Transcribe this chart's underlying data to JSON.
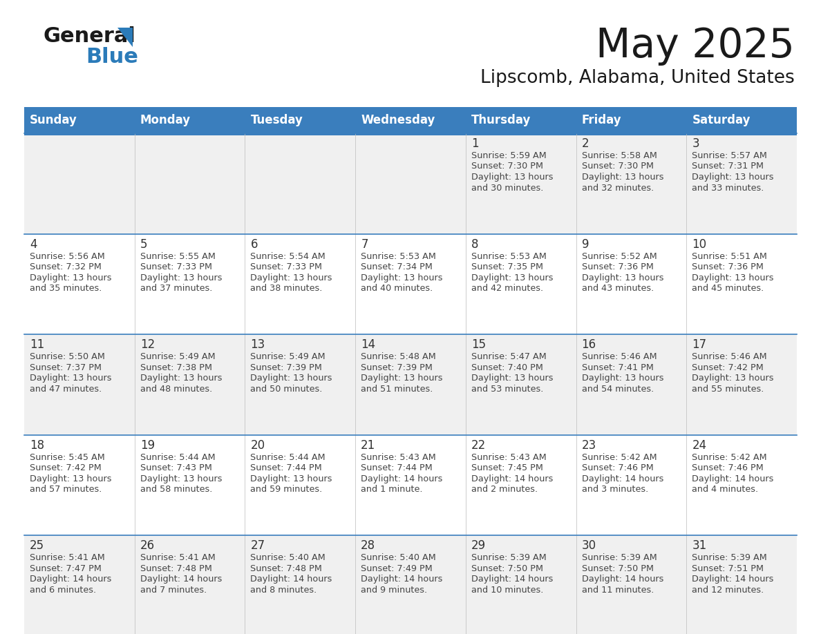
{
  "title": "May 2025",
  "subtitle": "Lipscomb, Alabama, United States",
  "days_of_week": [
    "Sunday",
    "Monday",
    "Tuesday",
    "Wednesday",
    "Thursday",
    "Friday",
    "Saturday"
  ],
  "header_bg_color": "#3A7EBD",
  "header_text_color": "#FFFFFF",
  "odd_row_bg": "#F0F0F0",
  "even_row_bg": "#FFFFFF",
  "row_separator_color": "#3A7EBD",
  "text_color": "#444444",
  "day_number_color": "#333333",
  "title_color": "#1a1a1a",
  "logo_black": "#1a1a1a",
  "logo_blue": "#2B7BB9",
  "calendar_data": [
    [
      {
        "day": "",
        "sunrise": "",
        "sunset": "",
        "daylight": ""
      },
      {
        "day": "",
        "sunrise": "",
        "sunset": "",
        "daylight": ""
      },
      {
        "day": "",
        "sunrise": "",
        "sunset": "",
        "daylight": ""
      },
      {
        "day": "",
        "sunrise": "",
        "sunset": "",
        "daylight": ""
      },
      {
        "day": "1",
        "sunrise": "5:59 AM",
        "sunset": "7:30 PM",
        "daylight": "13 hours and 30 minutes."
      },
      {
        "day": "2",
        "sunrise": "5:58 AM",
        "sunset": "7:30 PM",
        "daylight": "13 hours and 32 minutes."
      },
      {
        "day": "3",
        "sunrise": "5:57 AM",
        "sunset": "7:31 PM",
        "daylight": "13 hours and 33 minutes."
      }
    ],
    [
      {
        "day": "4",
        "sunrise": "5:56 AM",
        "sunset": "7:32 PM",
        "daylight": "13 hours and 35 minutes."
      },
      {
        "day": "5",
        "sunrise": "5:55 AM",
        "sunset": "7:33 PM",
        "daylight": "13 hours and 37 minutes."
      },
      {
        "day": "6",
        "sunrise": "5:54 AM",
        "sunset": "7:33 PM",
        "daylight": "13 hours and 38 minutes."
      },
      {
        "day": "7",
        "sunrise": "5:53 AM",
        "sunset": "7:34 PM",
        "daylight": "13 hours and 40 minutes."
      },
      {
        "day": "8",
        "sunrise": "5:53 AM",
        "sunset": "7:35 PM",
        "daylight": "13 hours and 42 minutes."
      },
      {
        "day": "9",
        "sunrise": "5:52 AM",
        "sunset": "7:36 PM",
        "daylight": "13 hours and 43 minutes."
      },
      {
        "day": "10",
        "sunrise": "5:51 AM",
        "sunset": "7:36 PM",
        "daylight": "13 hours and 45 minutes."
      }
    ],
    [
      {
        "day": "11",
        "sunrise": "5:50 AM",
        "sunset": "7:37 PM",
        "daylight": "13 hours and 47 minutes."
      },
      {
        "day": "12",
        "sunrise": "5:49 AM",
        "sunset": "7:38 PM",
        "daylight": "13 hours and 48 minutes."
      },
      {
        "day": "13",
        "sunrise": "5:49 AM",
        "sunset": "7:39 PM",
        "daylight": "13 hours and 50 minutes."
      },
      {
        "day": "14",
        "sunrise": "5:48 AM",
        "sunset": "7:39 PM",
        "daylight": "13 hours and 51 minutes."
      },
      {
        "day": "15",
        "sunrise": "5:47 AM",
        "sunset": "7:40 PM",
        "daylight": "13 hours and 53 minutes."
      },
      {
        "day": "16",
        "sunrise": "5:46 AM",
        "sunset": "7:41 PM",
        "daylight": "13 hours and 54 minutes."
      },
      {
        "day": "17",
        "sunrise": "5:46 AM",
        "sunset": "7:42 PM",
        "daylight": "13 hours and 55 minutes."
      }
    ],
    [
      {
        "day": "18",
        "sunrise": "5:45 AM",
        "sunset": "7:42 PM",
        "daylight": "13 hours and 57 minutes."
      },
      {
        "day": "19",
        "sunrise": "5:44 AM",
        "sunset": "7:43 PM",
        "daylight": "13 hours and 58 minutes."
      },
      {
        "day": "20",
        "sunrise": "5:44 AM",
        "sunset": "7:44 PM",
        "daylight": "13 hours and 59 minutes."
      },
      {
        "day": "21",
        "sunrise": "5:43 AM",
        "sunset": "7:44 PM",
        "daylight": "14 hours and 1 minute."
      },
      {
        "day": "22",
        "sunrise": "5:43 AM",
        "sunset": "7:45 PM",
        "daylight": "14 hours and 2 minutes."
      },
      {
        "day": "23",
        "sunrise": "5:42 AM",
        "sunset": "7:46 PM",
        "daylight": "14 hours and 3 minutes."
      },
      {
        "day": "24",
        "sunrise": "5:42 AM",
        "sunset": "7:46 PM",
        "daylight": "14 hours and 4 minutes."
      }
    ],
    [
      {
        "day": "25",
        "sunrise": "5:41 AM",
        "sunset": "7:47 PM",
        "daylight": "14 hours and 6 minutes."
      },
      {
        "day": "26",
        "sunrise": "5:41 AM",
        "sunset": "7:48 PM",
        "daylight": "14 hours and 7 minutes."
      },
      {
        "day": "27",
        "sunrise": "5:40 AM",
        "sunset": "7:48 PM",
        "daylight": "14 hours and 8 minutes."
      },
      {
        "day": "28",
        "sunrise": "5:40 AM",
        "sunset": "7:49 PM",
        "daylight": "14 hours and 9 minutes."
      },
      {
        "day": "29",
        "sunrise": "5:39 AM",
        "sunset": "7:50 PM",
        "daylight": "14 hours and 10 minutes."
      },
      {
        "day": "30",
        "sunrise": "5:39 AM",
        "sunset": "7:50 PM",
        "daylight": "14 hours and 11 minutes."
      },
      {
        "day": "31",
        "sunrise": "5:39 AM",
        "sunset": "7:51 PM",
        "daylight": "14 hours and 12 minutes."
      }
    ]
  ]
}
